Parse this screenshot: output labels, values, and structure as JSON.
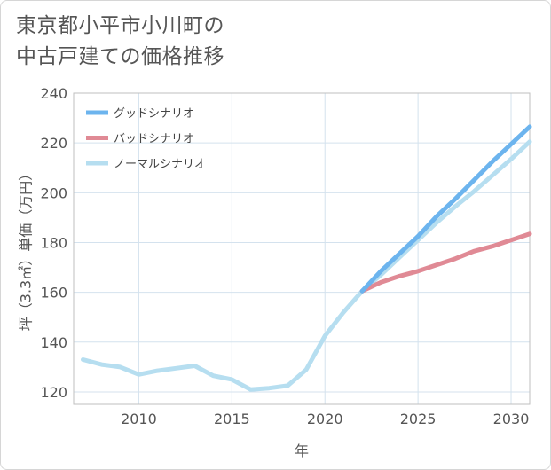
{
  "title_lines": [
    "東京都小平市小川町の",
    "中古戸建ての価格推移"
  ],
  "chart_data": {
    "type": "line",
    "title": "東京都小平市小川町の中古戸建ての価格推移",
    "xlabel": "年",
    "ylabel": "坪（3.3㎡）単価（万円）",
    "xlim": [
      2006.5,
      2031
    ],
    "ylim": [
      115,
      240
    ],
    "x_ticks": [
      2010,
      2015,
      2020,
      2025,
      2030
    ],
    "y_ticks": [
      120,
      140,
      160,
      180,
      200,
      220,
      240
    ],
    "grid": true,
    "legend_position": "top-left",
    "series": [
      {
        "name": "グッドシナリオ",
        "color": "#6cb4ee",
        "x": [
          2022,
          2023,
          2024,
          2025,
          2026,
          2027,
          2028,
          2029,
          2030,
          2031
        ],
        "values": [
          160.5,
          168.5,
          175.5,
          182.5,
          190.5,
          197.5,
          205,
          212.5,
          219.5,
          226.5
        ]
      },
      {
        "name": "バッドシナリオ",
        "color": "#e08a95",
        "x": [
          2022,
          2023,
          2024,
          2025,
          2026,
          2027,
          2028,
          2029,
          2030,
          2031
        ],
        "values": [
          160.5,
          164,
          166.5,
          168.5,
          171,
          173.5,
          176.5,
          178.5,
          181,
          183.5
        ]
      },
      {
        "name": "ノーマルシナリオ",
        "color": "#b6def0",
        "x": [
          2007,
          2008,
          2009,
          2010,
          2011,
          2012,
          2013,
          2014,
          2015,
          2016,
          2017,
          2018,
          2019,
          2020,
          2021,
          2022,
          2023,
          2024,
          2025,
          2026,
          2027,
          2028,
          2029,
          2030,
          2031
        ],
        "values": [
          133,
          131,
          130,
          127,
          128.5,
          129.5,
          130.5,
          126.5,
          125,
          121,
          121.5,
          122.5,
          129,
          142.5,
          152,
          160.5,
          167,
          174,
          181,
          188,
          194.5,
          200.5,
          207,
          213.5,
          220.5
        ]
      }
    ]
  }
}
